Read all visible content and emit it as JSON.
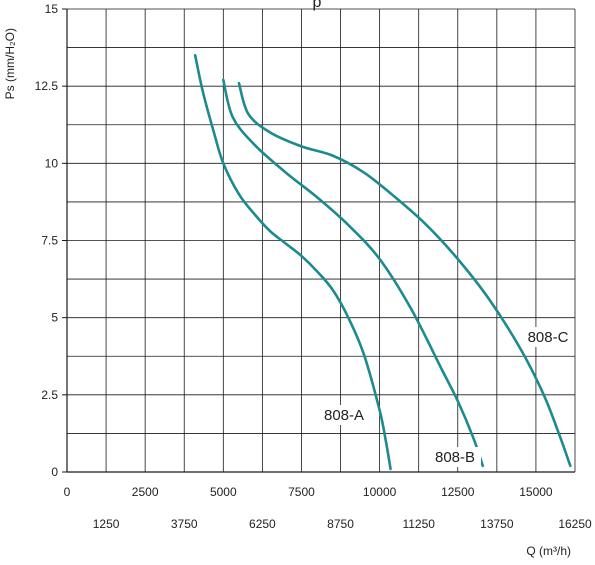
{
  "colors": {
    "curve": "#1c8a8e",
    "grid": "#1a1a1a",
    "axis": "#1a1a1a",
    "background": "#ffffff",
    "title_fragment": "#1c8a8e"
  },
  "chart_data": {
    "type": "line",
    "title": "",
    "title_fragment": "p",
    "xlabel": "Q (m³/h)",
    "ylabel": "Ps (mm/H₂O)",
    "xlim": [
      0,
      16250
    ],
    "ylim": [
      0,
      15
    ],
    "grid": true,
    "legend": "none",
    "x_ticks_upper": [
      "0",
      "2500",
      "5000",
      "7500",
      "10000",
      "12500",
      "15000"
    ],
    "x_ticks_lower": [
      "1250",
      "3750",
      "6250",
      "8750",
      "11250",
      "13750",
      "16250"
    ],
    "y_ticks": [
      "0",
      "2.5",
      "5",
      "7.5",
      "10",
      "12.5",
      "15"
    ],
    "series": [
      {
        "name": "808-A",
        "points": [
          [
            4100,
            13.5
          ],
          [
            4350,
            12.3
          ],
          [
            4700,
            11.0
          ],
          [
            5000,
            10.0
          ],
          [
            5500,
            9.0
          ],
          [
            6000,
            8.35
          ],
          [
            6500,
            7.8
          ],
          [
            7000,
            7.4
          ],
          [
            7500,
            7.0
          ],
          [
            8000,
            6.5
          ],
          [
            8500,
            5.9
          ],
          [
            9000,
            5.0
          ],
          [
            9500,
            3.8
          ],
          [
            10000,
            2.0
          ],
          [
            10200,
            1.0
          ],
          [
            10350,
            0.1
          ]
        ]
      },
      {
        "name": "808-B",
        "points": [
          [
            5000,
            12.7
          ],
          [
            5300,
            11.5
          ],
          [
            6000,
            10.6
          ],
          [
            7000,
            9.7
          ],
          [
            8000,
            8.9
          ],
          [
            9000,
            8.0
          ],
          [
            10000,
            6.9
          ],
          [
            11000,
            5.3
          ],
          [
            12000,
            3.3
          ],
          [
            12500,
            2.3
          ],
          [
            13000,
            1.1
          ],
          [
            13300,
            0.2
          ]
        ]
      },
      {
        "name": "808-C",
        "points": [
          [
            5500,
            12.6
          ],
          [
            5800,
            11.6
          ],
          [
            6500,
            11.0
          ],
          [
            7500,
            10.55
          ],
          [
            8500,
            10.25
          ],
          [
            9500,
            9.7
          ],
          [
            10500,
            8.9
          ],
          [
            11500,
            8.0
          ],
          [
            12500,
            6.9
          ],
          [
            13500,
            5.6
          ],
          [
            14500,
            4.0
          ],
          [
            15250,
            2.5
          ],
          [
            15750,
            1.2
          ],
          [
            16100,
            0.2
          ]
        ]
      }
    ]
  }
}
